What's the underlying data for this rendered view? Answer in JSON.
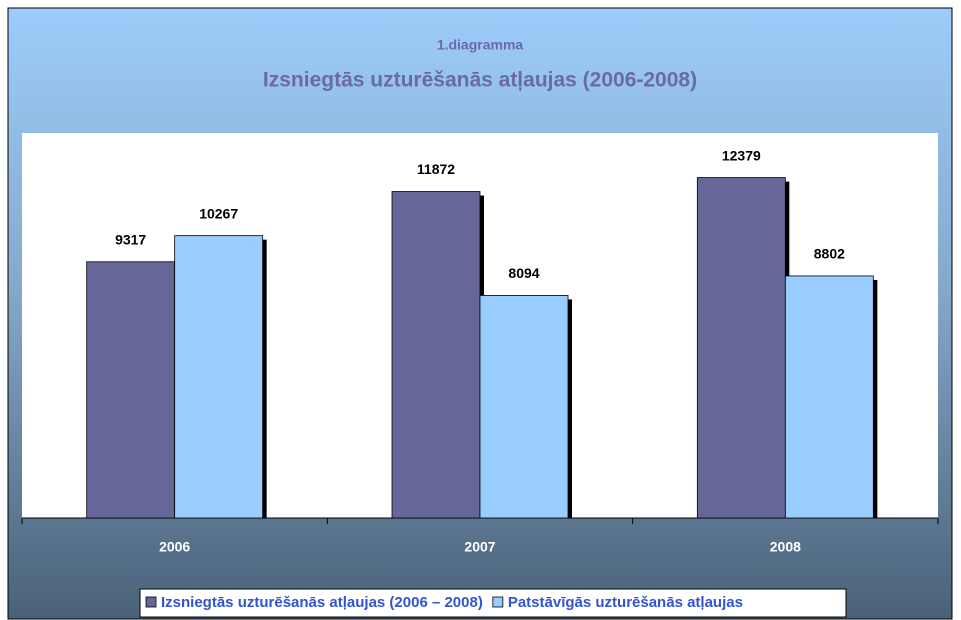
{
  "chart_data": {
    "type": "bar",
    "title": "1.diagramma",
    "subtitle": "Izsniegtās uzturēšanās atļaujas (2006-2008)",
    "categories": [
      "2006",
      "2007",
      "2008"
    ],
    "series": [
      {
        "name": "Izsniegtās uzturēšanās atļaujas (2006 – 2008)",
        "color": "#666699",
        "values": [
          9317,
          11872,
          12379
        ]
      },
      {
        "name": "Patstāvīgās uzturēšanās atļaujas",
        "color": "#99ccff",
        "values": [
          10267,
          8094,
          8802
        ]
      }
    ],
    "ylim": [
      0,
      14000
    ],
    "legend": "bottom"
  }
}
